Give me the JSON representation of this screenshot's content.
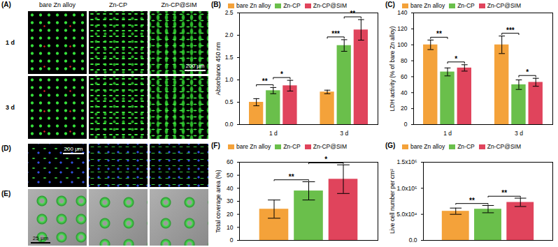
{
  "chart_data": [
    {
      "type": "bar",
      "title": "(B)",
      "y_label": "Absorbance 450 nm",
      "categories": [
        "1 d",
        "3 d"
      ],
      "series": [
        {
          "name": "bare Zn alloy",
          "color": "#f4a23a",
          "values": [
            0.5,
            0.73
          ],
          "errors": [
            0.08,
            0.04
          ]
        },
        {
          "name": "Zn-CP",
          "color": "#6abf4b",
          "values": [
            0.76,
            1.77
          ],
          "errors": [
            0.07,
            0.13
          ]
        },
        {
          "name": "Zn-CP@SIM",
          "color": "#e0445c",
          "values": [
            0.87,
            2.12
          ],
          "errors": [
            0.12,
            0.23
          ]
        }
      ],
      "ylim": [
        0,
        2.5
      ],
      "yticks": [
        {
          "value": 0,
          "label": "0.0"
        },
        0.5,
        {
          "value": 1,
          "label": "1.0"
        },
        1.5,
        {
          "value": 2,
          "label": "2.0"
        },
        2.5
      ],
      "legend": "top",
      "annotations": [
        {
          "category": "1 d",
          "from": "bare Zn alloy",
          "to": "Zn-CP",
          "label": "**"
        },
        {
          "category": "1 d",
          "from": "Zn-CP",
          "to": "Zn-CP@SIM",
          "label": "*"
        },
        {
          "category": "3 d",
          "from": "bare Zn alloy",
          "to": "Zn-CP",
          "label": "***"
        },
        {
          "category": "3 d",
          "from": "Zn-CP",
          "to": "Zn-CP@SIM",
          "label": "**"
        }
      ]
    },
    {
      "type": "bar",
      "title": "(C)",
      "y_label": "LDH activity (% of bare Zn alloy)",
      "categories": [
        "1 d",
        "3 d"
      ],
      "series": [
        {
          "name": "bare Zn alloy",
          "color": "#f4a23a",
          "values": [
            100,
            100
          ],
          "errors": [
            6,
            11
          ]
        },
        {
          "name": "Zn-CP",
          "color": "#6abf4b",
          "values": [
            66,
            50
          ],
          "errors": [
            5,
            6
          ]
        },
        {
          "name": "Zn-CP@SIM",
          "color": "#e0445c",
          "values": [
            71,
            53
          ],
          "errors": [
            4,
            5
          ]
        }
      ],
      "ylim": [
        0,
        140
      ],
      "yticks": [
        0,
        20,
        40,
        60,
        80,
        100,
        120,
        140
      ],
      "legend": "top",
      "annotations": [
        {
          "category": "1 d",
          "from": "bare Zn alloy",
          "to": "Zn-CP",
          "label": "**"
        },
        {
          "category": "1 d",
          "from": "Zn-CP",
          "to": "Zn-CP@SIM",
          "label": "*"
        },
        {
          "category": "3 d",
          "from": "bare Zn alloy",
          "to": "Zn-CP",
          "label": "***"
        },
        {
          "category": "3 d",
          "from": "Zn-CP",
          "to": "Zn-CP@SIM",
          "label": "*"
        }
      ]
    },
    {
      "type": "bar",
      "title": "(F)",
      "y_label": "Total coverage area (%)",
      "categories": [
        null
      ],
      "series": [
        {
          "name": "bare Zn alloy",
          "color": "#f4a23a",
          "values": [
            24
          ],
          "errors": [
            7
          ]
        },
        {
          "name": "Zn-CP",
          "color": "#6abf4b",
          "values": [
            38
          ],
          "errors": [
            7
          ]
        },
        {
          "name": "Zn-CP@SIM",
          "color": "#e0445c",
          "values": [
            47
          ],
          "errors": [
            11
          ]
        }
      ],
      "ylim": [
        0,
        60
      ],
      "yticks": [
        0,
        10,
        20,
        30,
        40,
        50,
        60
      ],
      "legend": "top",
      "tick_labels": "y",
      "annotations": [
        {
          "category": null,
          "from": "bare Zn alloy",
          "to": "Zn-CP",
          "label": "**"
        },
        {
          "category": null,
          "from": "Zn-CP",
          "to": "Zn-CP@SIM",
          "label": "*"
        }
      ]
    },
    {
      "type": "bar",
      "title": "(G)",
      "y_label": "Live cell number per cm²",
      "categories": [
        null
      ],
      "series": [
        {
          "name": "bare Zn alloy",
          "color": "#f4a23a",
          "values": [
            56000
          ],
          "errors": [
            6000
          ]
        },
        {
          "name": "Zn-CP",
          "color": "#6abf4b",
          "values": [
            60000
          ],
          "errors": [
            7000
          ]
        },
        {
          "name": "Zn-CP@SIM",
          "color": "#e0445c",
          "values": [
            73000
          ],
          "errors": [
            8000
          ]
        }
      ],
      "ylim": [
        0,
        150000
      ],
      "yticks": [
        {
          "value": 0,
          "label": "0.0"
        },
        {
          "value": 50000,
          "label": "5.0x10⁴"
        },
        {
          "value": 100000,
          "label": "1.0x10⁵"
        },
        {
          "value": 150000,
          "label": "1.5x10⁵"
        }
      ],
      "legend": "top",
      "tick_labels": "y",
      "annotations": [
        {
          "category": null,
          "from": "bare Zn alloy",
          "to": "Zn-CP",
          "label": "**"
        },
        {
          "category": null,
          "from": "Zn-CP",
          "to": "Zn-CP@SIM",
          "label": "**"
        }
      ]
    }
  ],
  "image_panels": [
    {
      "title": "(A)",
      "columns": [
        "bare Zn alloy",
        "Zn-CP",
        "Zn-CP@SIM"
      ],
      "rows": [
        "1 d",
        "3 d"
      ],
      "scale_bar": "200 μm"
    },
    {
      "title": "(D)",
      "scale_bar": "200 μm"
    },
    {
      "title": "(E)",
      "scale_bar": "25 μm"
    }
  ]
}
